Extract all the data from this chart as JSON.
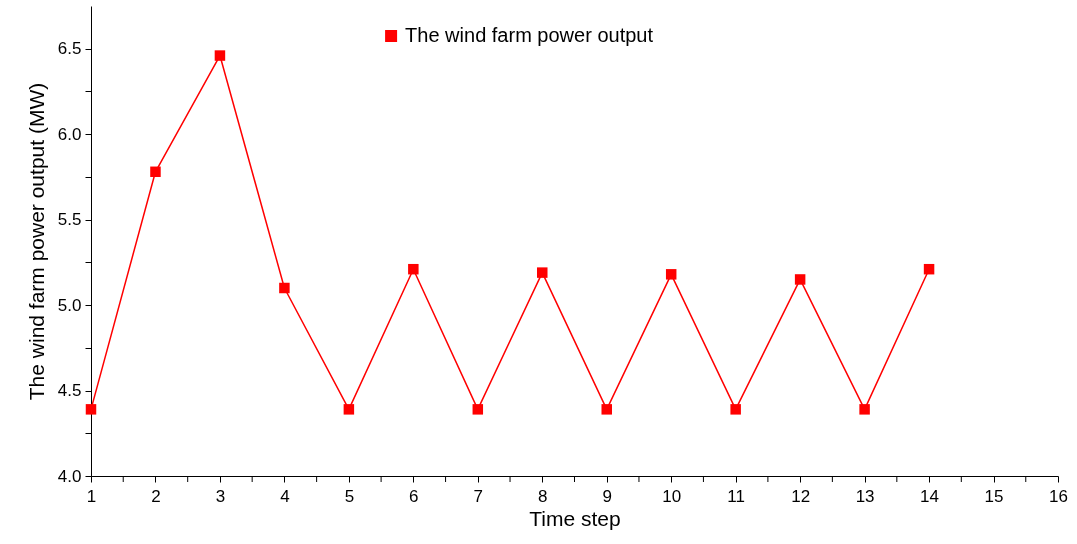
{
  "chart_data": {
    "type": "line",
    "xlabel": "Time step",
    "ylabel": "The wind farm power output (MW)",
    "x": [
      1,
      2,
      3,
      4,
      5,
      6,
      7,
      8,
      9,
      10,
      11,
      12,
      13,
      14
    ],
    "series": [
      {
        "name": "The wind farm power output",
        "color": "#ff0000",
        "values": [
          4.39,
          5.78,
          6.46,
          5.1,
          4.39,
          5.21,
          4.39,
          5.19,
          4.39,
          5.18,
          4.39,
          5.15,
          4.39,
          5.21
        ]
      }
    ],
    "xlim": [
      1,
      16
    ],
    "xticks": [
      1,
      {
        "value": 1.5,
        "label": null
      },
      2,
      {
        "value": 2.5,
        "label": null
      },
      3,
      {
        "value": 3.5,
        "label": null
      },
      4,
      {
        "value": 4.5,
        "label": null
      },
      5,
      {
        "value": 5.5,
        "label": null
      },
      6,
      {
        "value": 6.5,
        "label": null
      },
      7,
      {
        "value": 7.5,
        "label": null
      },
      8,
      {
        "value": 8.5,
        "label": null
      },
      9,
      {
        "value": 9.5,
        "label": null
      },
      10,
      {
        "value": 10.5,
        "label": null
      },
      11,
      {
        "value": 11.5,
        "label": null
      },
      12,
      {
        "value": 12.5,
        "label": null
      },
      13,
      {
        "value": 13.5,
        "label": null
      },
      14,
      {
        "value": 14.5,
        "label": null
      },
      15,
      {
        "value": 15.5,
        "label": null
      },
      16
    ],
    "ylim": [
      4.0,
      6.75
    ],
    "yticks": [
      {
        "value": 4.0,
        "label": "4.0"
      },
      {
        "value": 4.25,
        "label": null
      },
      {
        "value": 4.5,
        "label": "4.5"
      },
      {
        "value": 4.75,
        "label": null
      },
      {
        "value": 5.0,
        "label": "5.0"
      },
      {
        "value": 5.25,
        "label": null
      },
      {
        "value": 5.5,
        "label": "5.5"
      },
      {
        "value": 5.75,
        "label": null
      },
      {
        "value": 6.0,
        "label": "6.0"
      },
      {
        "value": 6.25,
        "label": null
      },
      {
        "value": 6.5,
        "label": "6.5"
      }
    ],
    "grid": false,
    "legend": "top",
    "marker": "square",
    "line_style": "solid"
  }
}
